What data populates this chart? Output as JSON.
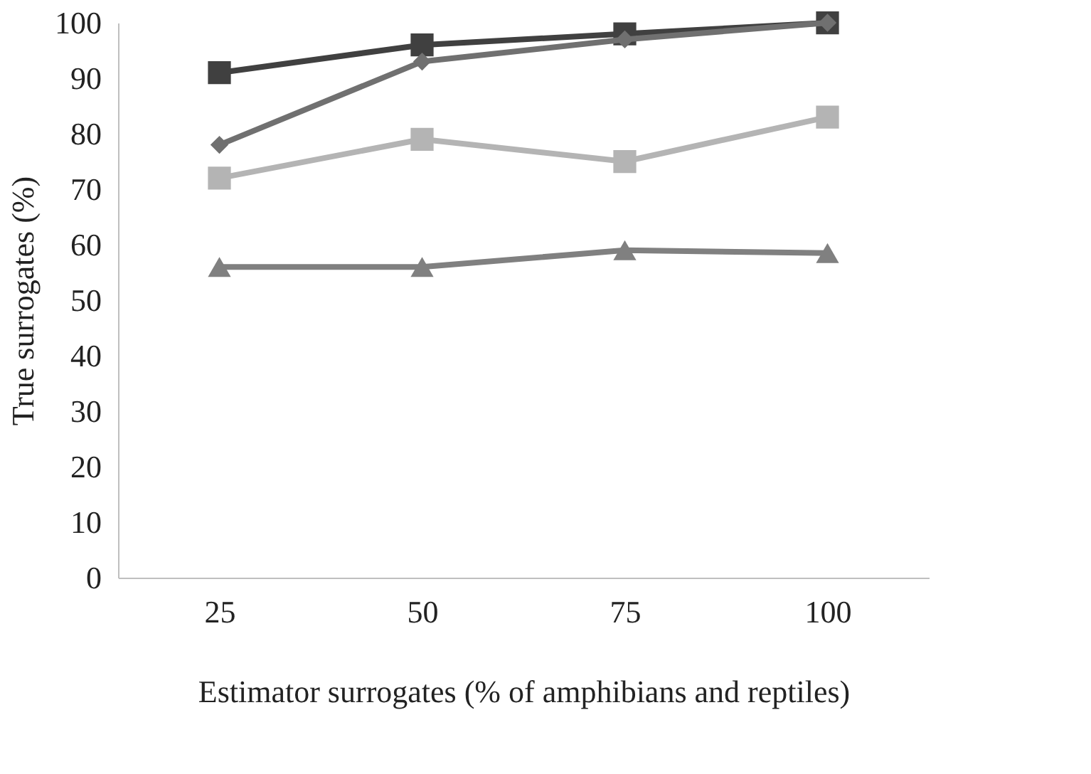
{
  "chart_data": {
    "type": "line",
    "xlabel": "Estimator surrogates (% of amphibians and reptiles)",
    "ylabel": "True surrogates (%)",
    "categories": [
      "25",
      "50",
      "75",
      "100"
    ],
    "series": [
      {
        "color": "#404040",
        "marker": "square",
        "values": [
          91,
          96,
          98,
          100
        ]
      },
      {
        "color": "#707070",
        "marker": "diamond",
        "values": [
          78,
          93,
          97,
          100
        ]
      },
      {
        "color": "#b4b4b4",
        "marker": "square",
        "values": [
          72,
          79,
          75,
          83
        ]
      },
      {
        "color": "#808080",
        "marker": "triangle",
        "values": [
          56,
          56,
          59,
          58.5
        ]
      }
    ],
    "ylim": [
      0,
      100
    ],
    "yticks": [
      0,
      10,
      20,
      30,
      40,
      50,
      60,
      70,
      80,
      90,
      100
    ],
    "grid": false
  }
}
